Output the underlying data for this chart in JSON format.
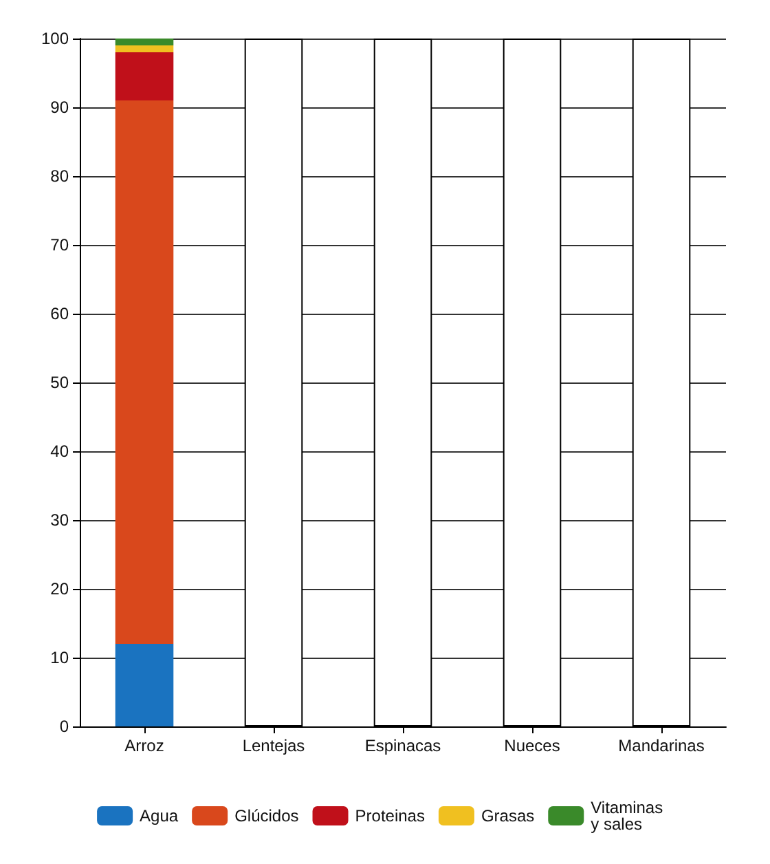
{
  "chart_data": {
    "type": "bar",
    "stacked": true,
    "categories": [
      "Arroz",
      "Lentejas",
      "Espinacas",
      "Nueces",
      "Mandarinas"
    ],
    "series": [
      {
        "name": "Agua",
        "color": "#1a73c0",
        "values": [
          12,
          null,
          null,
          null,
          null
        ]
      },
      {
        "name": "Glúcidos",
        "color": "#d9481c",
        "values": [
          79,
          null,
          null,
          null,
          null
        ]
      },
      {
        "name": "Proteinas",
        "color": "#c0101a",
        "values": [
          7,
          null,
          null,
          null,
          null
        ]
      },
      {
        "name": "Grasas",
        "color": "#f0c020",
        "values": [
          1,
          null,
          null,
          null,
          null
        ]
      },
      {
        "name": "Vitaminas y sales",
        "color": "#3a8a2a",
        "values": [
          1,
          null,
          null,
          null,
          null
        ]
      },
      {
        "color": "#ffffff",
        "values": [
          null,
          100,
          100,
          100,
          100
        ]
      }
    ],
    "ylim": [
      0,
      100
    ],
    "yticks": [
      0,
      10,
      20,
      30,
      40,
      50,
      60,
      70,
      80,
      90,
      100
    ],
    "grid": "y",
    "legend": "bottom"
  }
}
